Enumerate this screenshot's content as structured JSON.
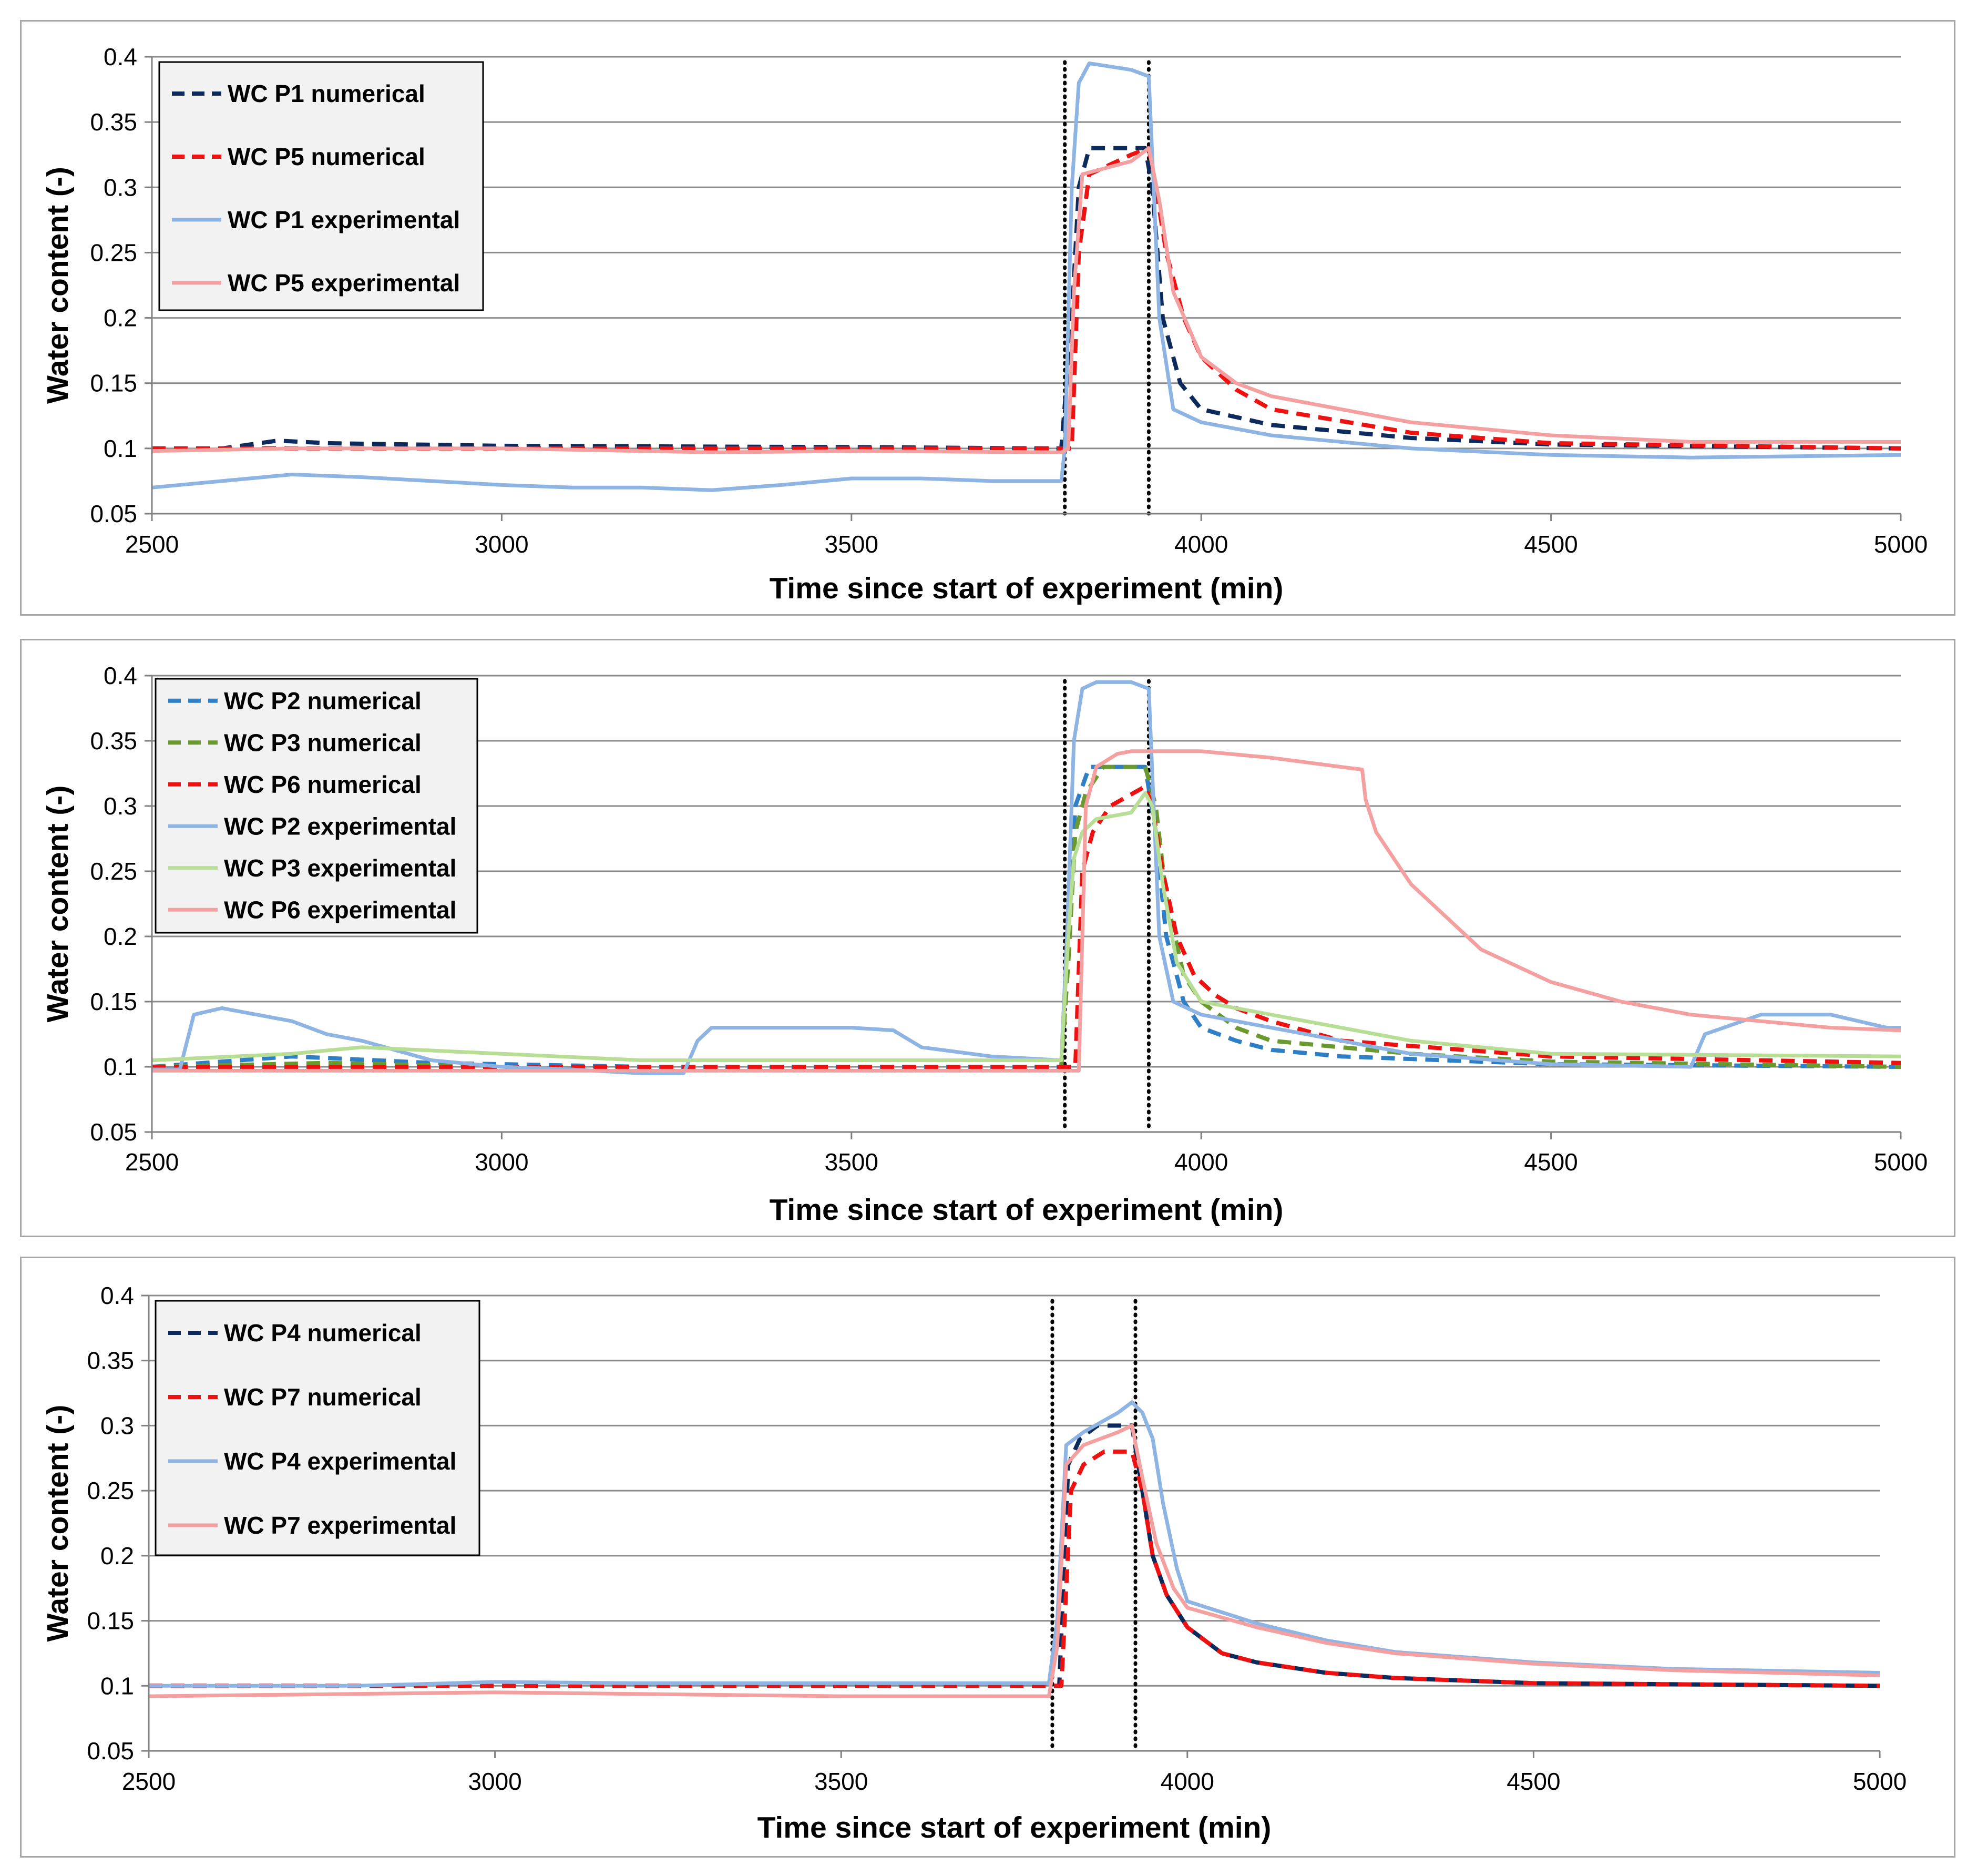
{
  "colors": {
    "navy": "#0d2a5c",
    "red": "#ee1111",
    "blue_light": "#8db4e2",
    "pink": "#f4a0a0",
    "blue_dash": "#2f7fc7",
    "green_dash": "#6a9a2f",
    "green_light": "#b7de94",
    "grid": "#8c8c8c"
  },
  "chart_data": [
    {
      "type": "line",
      "title": "",
      "xlabel": "Time since start of experiment (min)",
      "ylabel": "Water content (-)",
      "xlim": [
        2500,
        5000
      ],
      "ylim": [
        0.05,
        0.4
      ],
      "xticks": [
        2500,
        3000,
        3500,
        4000,
        4500,
        5000
      ],
      "yticks": [
        0.05,
        0.1,
        0.15,
        0.2,
        0.25,
        0.3,
        0.35,
        0.4
      ],
      "xtick_labels": [
        "2500",
        "3000",
        "3500",
        "4000",
        "4500",
        "5000"
      ],
      "ytick_labels": [
        "0.05",
        "0.1",
        "0.15",
        "0.2",
        "0.25",
        "0.3",
        "0.35",
        "0.4"
      ],
      "event_lines_x": [
        3805,
        3925
      ],
      "legend_position": "top-left",
      "series": [
        {
          "name": "WC P1 numerical",
          "color": "#0d2a5c",
          "style": "dashed",
          "x": [
            2500,
            2600,
            2680,
            2750,
            3000,
            3500,
            3800,
            3815,
            3825,
            3840,
            3920,
            3930,
            3945,
            3970,
            4000,
            4100,
            4300,
            4500,
            5000
          ],
          "y": [
            0.1,
            0.1,
            0.106,
            0.104,
            0.102,
            0.101,
            0.1,
            0.2,
            0.3,
            0.33,
            0.33,
            0.3,
            0.2,
            0.15,
            0.13,
            0.118,
            0.108,
            0.103,
            0.1
          ]
        },
        {
          "name": "WC P5 numerical",
          "color": "#ee1111",
          "style": "dashed",
          "x": [
            2500,
            3000,
            3500,
            3800,
            3815,
            3825,
            3840,
            3900,
            3925,
            3935,
            3950,
            3975,
            4000,
            4050,
            4100,
            4300,
            4500,
            5000
          ],
          "y": [
            0.1,
            0.1,
            0.1,
            0.1,
            0.1,
            0.25,
            0.31,
            0.325,
            0.33,
            0.3,
            0.25,
            0.2,
            0.17,
            0.145,
            0.13,
            0.112,
            0.104,
            0.1
          ]
        },
        {
          "name": "WC P1 experimental",
          "color": "#8db4e2",
          "style": "solid",
          "x": [
            2500,
            2600,
            2700,
            2800,
            2900,
            3000,
            3100,
            3200,
            3300,
            3400,
            3500,
            3600,
            3700,
            3800,
            3805,
            3815,
            3825,
            3840,
            3900,
            3925,
            3932,
            3940,
            3960,
            4000,
            4100,
            4300,
            4500,
            4700,
            5000
          ],
          "y": [
            0.07,
            0.075,
            0.08,
            0.078,
            0.075,
            0.072,
            0.07,
            0.07,
            0.068,
            0.072,
            0.077,
            0.077,
            0.075,
            0.075,
            0.1,
            0.3,
            0.38,
            0.395,
            0.39,
            0.385,
            0.3,
            0.2,
            0.13,
            0.12,
            0.11,
            0.1,
            0.095,
            0.093,
            0.095
          ]
        },
        {
          "name": "WC P5 experimental",
          "color": "#f4a0a0",
          "style": "solid",
          "x": [
            2500,
            2700,
            3000,
            3300,
            3500,
            3800,
            3810,
            3818,
            3830,
            3900,
            3925,
            3940,
            3960,
            4000,
            4050,
            4100,
            4200,
            4300,
            4500,
            4700,
            5000
          ],
          "y": [
            0.098,
            0.1,
            0.1,
            0.097,
            0.098,
            0.097,
            0.1,
            0.22,
            0.31,
            0.32,
            0.33,
            0.29,
            0.22,
            0.17,
            0.15,
            0.14,
            0.13,
            0.12,
            0.11,
            0.105,
            0.105
          ]
        }
      ]
    },
    {
      "type": "line",
      "title": "",
      "xlabel": "Time since start of experiment (min)",
      "ylabel": "Water content (-)",
      "xlim": [
        2500,
        5000
      ],
      "ylim": [
        0.05,
        0.4
      ],
      "xticks": [
        2500,
        3000,
        3500,
        4000,
        4500,
        5000
      ],
      "yticks": [
        0.05,
        0.1,
        0.15,
        0.2,
        0.25,
        0.3,
        0.35,
        0.4
      ],
      "xtick_labels": [
        "2500",
        "3000",
        "3500",
        "4000",
        "4500",
        "5000"
      ],
      "ytick_labels": [
        "0.05",
        "0.1",
        "0.15",
        "0.2",
        "0.25",
        "0.3",
        "0.35",
        "0.4"
      ],
      "event_lines_x": [
        3805,
        3925
      ],
      "legend_position": "top-left",
      "series": [
        {
          "name": "WC P2 numerical",
          "color": "#2f7fc7",
          "style": "dashed",
          "x": [
            2500,
            2700,
            2900,
            3200,
            3500,
            3800,
            3810,
            3820,
            3840,
            3920,
            3935,
            3950,
            3975,
            4000,
            4050,
            4100,
            4200,
            4500,
            5000
          ],
          "y": [
            0.1,
            0.108,
            0.103,
            0.1,
            0.1,
            0.1,
            0.2,
            0.3,
            0.33,
            0.33,
            0.28,
            0.2,
            0.15,
            0.13,
            0.12,
            0.113,
            0.108,
            0.102,
            0.1
          ]
        },
        {
          "name": "WC P3 numerical",
          "color": "#6a9a2f",
          "style": "dashed",
          "x": [
            2500,
            2750,
            3000,
            3500,
            3800,
            3810,
            3820,
            3835,
            3860,
            3920,
            3935,
            3950,
            3975,
            4000,
            4050,
            4100,
            4300,
            4500,
            5000
          ],
          "y": [
            0.1,
            0.103,
            0.1,
            0.1,
            0.1,
            0.18,
            0.28,
            0.31,
            0.33,
            0.33,
            0.3,
            0.23,
            0.17,
            0.15,
            0.13,
            0.12,
            0.11,
            0.104,
            0.1
          ]
        },
        {
          "name": "WC P6 numerical",
          "color": "#ee1111",
          "style": "dashed",
          "x": [
            2500,
            3000,
            3500,
            3800,
            3820,
            3830,
            3845,
            3870,
            3920,
            3930,
            3945,
            3965,
            3990,
            4020,
            4050,
            4100,
            4200,
            4500,
            5000
          ],
          "y": [
            0.1,
            0.1,
            0.1,
            0.1,
            0.1,
            0.25,
            0.28,
            0.3,
            0.315,
            0.3,
            0.25,
            0.2,
            0.17,
            0.155,
            0.145,
            0.135,
            0.12,
            0.108,
            0.103
          ]
        },
        {
          "name": "WC P2 experimental",
          "color": "#8db4e2",
          "style": "solid",
          "x": [
            2500,
            2540,
            2560,
            2600,
            2650,
            2700,
            2750,
            2800,
            2900,
            3000,
            3100,
            3200,
            3260,
            3280,
            3300,
            3400,
            3500,
            3560,
            3600,
            3700,
            3800,
            3808,
            3818,
            3830,
            3850,
            3900,
            3925,
            3932,
            3940,
            3960,
            4000,
            4100,
            4200,
            4300,
            4500,
            4700,
            4720,
            4800,
            4900,
            4980,
            5000
          ],
          "y": [
            0.098,
            0.098,
            0.14,
            0.145,
            0.14,
            0.135,
            0.125,
            0.12,
            0.105,
            0.1,
            0.098,
            0.095,
            0.095,
            0.12,
            0.13,
            0.13,
            0.13,
            0.128,
            0.115,
            0.108,
            0.105,
            0.2,
            0.35,
            0.39,
            0.395,
            0.395,
            0.39,
            0.3,
            0.2,
            0.15,
            0.14,
            0.13,
            0.12,
            0.11,
            0.102,
            0.1,
            0.125,
            0.14,
            0.14,
            0.13,
            0.13
          ]
        },
        {
          "name": "WC P3 experimental",
          "color": "#b7de94",
          "style": "solid",
          "x": [
            2500,
            2700,
            2800,
            3000,
            3200,
            3500,
            3800,
            3810,
            3818,
            3830,
            3850,
            3900,
            3920,
            3930,
            3945,
            3965,
            4000,
            4100,
            4200,
            4300,
            4500,
            5000
          ],
          "y": [
            0.105,
            0.11,
            0.115,
            0.11,
            0.105,
            0.105,
            0.105,
            0.2,
            0.26,
            0.28,
            0.29,
            0.295,
            0.31,
            0.3,
            0.24,
            0.18,
            0.15,
            0.14,
            0.13,
            0.12,
            0.11,
            0.108
          ]
        },
        {
          "name": "WC P6 experimental",
          "color": "#f4a0a0",
          "style": "solid",
          "x": [
            2500,
            3000,
            3500,
            3800,
            3825,
            3835,
            3850,
            3880,
            3900,
            4000,
            4100,
            4200,
            4230,
            4235,
            4250,
            4300,
            4400,
            4500,
            4600,
            4700,
            4800,
            4900,
            5000
          ],
          "y": [
            0.097,
            0.097,
            0.097,
            0.097,
            0.097,
            0.3,
            0.33,
            0.34,
            0.342,
            0.342,
            0.337,
            0.33,
            0.328,
            0.305,
            0.28,
            0.24,
            0.19,
            0.165,
            0.15,
            0.14,
            0.135,
            0.13,
            0.128
          ]
        }
      ]
    },
    {
      "type": "line",
      "title": "",
      "xlabel": "Time since start of experiment (min)",
      "ylabel": "Water content (-)",
      "xlim": [
        2500,
        5000
      ],
      "ylim": [
        0.05,
        0.4
      ],
      "xticks": [
        2500,
        3000,
        3500,
        4000,
        4500,
        5000
      ],
      "yticks": [
        0.05,
        0.1,
        0.15,
        0.2,
        0.25,
        0.3,
        0.35,
        0.4
      ],
      "xtick_labels": [
        "2500",
        "3000",
        "3500",
        "4000",
        "4500",
        "5000"
      ],
      "ytick_labels": [
        "0.05",
        "0.1",
        "0.15",
        "0.2",
        "0.25",
        "0.3",
        "0.35",
        "0.4"
      ],
      "event_lines_x": [
        3805,
        3925
      ],
      "legend_position": "top-left",
      "series": [
        {
          "name": "WC P4 numerical",
          "color": "#0d2a5c",
          "style": "dashed",
          "x": [
            2500,
            3000,
            3500,
            3800,
            3815,
            3828,
            3845,
            3870,
            3920,
            3935,
            3950,
            3970,
            4000,
            4050,
            4100,
            4200,
            4300,
            4500,
            5000
          ],
          "y": [
            0.1,
            0.1,
            0.1,
            0.1,
            0.1,
            0.27,
            0.29,
            0.3,
            0.3,
            0.25,
            0.2,
            0.17,
            0.145,
            0.125,
            0.118,
            0.11,
            0.106,
            0.102,
            0.1
          ]
        },
        {
          "name": "WC P7 numerical",
          "color": "#ee1111",
          "style": "dashed",
          "x": [
            2500,
            3000,
            3500,
            3800,
            3818,
            3832,
            3850,
            3880,
            3920,
            3935,
            3950,
            3970,
            4000,
            4050,
            4100,
            4200,
            4300,
            4500,
            5000
          ],
          "y": [
            0.1,
            0.1,
            0.1,
            0.1,
            0.1,
            0.25,
            0.27,
            0.28,
            0.28,
            0.25,
            0.2,
            0.17,
            0.145,
            0.125,
            0.118,
            0.11,
            0.106,
            0.102,
            0.1
          ]
        },
        {
          "name": "WC P4 experimental",
          "color": "#8db4e2",
          "style": "solid",
          "x": [
            2500,
            2800,
            3000,
            3200,
            3500,
            3800,
            3812,
            3825,
            3850,
            3900,
            3920,
            3935,
            3950,
            3965,
            3985,
            4000,
            4100,
            4200,
            4300,
            4500,
            4700,
            5000
          ],
          "y": [
            0.1,
            0.1,
            0.103,
            0.102,
            0.102,
            0.102,
            0.15,
            0.285,
            0.295,
            0.31,
            0.318,
            0.31,
            0.29,
            0.24,
            0.19,
            0.165,
            0.148,
            0.135,
            0.126,
            0.118,
            0.113,
            0.11
          ]
        },
        {
          "name": "WC P7 experimental",
          "color": "#f4a0a0",
          "style": "solid",
          "x": [
            2500,
            3000,
            3500,
            3800,
            3812,
            3825,
            3850,
            3900,
            3920,
            3935,
            3955,
            3980,
            4000,
            4100,
            4200,
            4300,
            4500,
            4700,
            5000
          ],
          "y": [
            0.092,
            0.095,
            0.092,
            0.092,
            0.13,
            0.27,
            0.285,
            0.295,
            0.3,
            0.26,
            0.21,
            0.175,
            0.16,
            0.145,
            0.133,
            0.125,
            0.117,
            0.112,
            0.108
          ]
        }
      ]
    }
  ]
}
